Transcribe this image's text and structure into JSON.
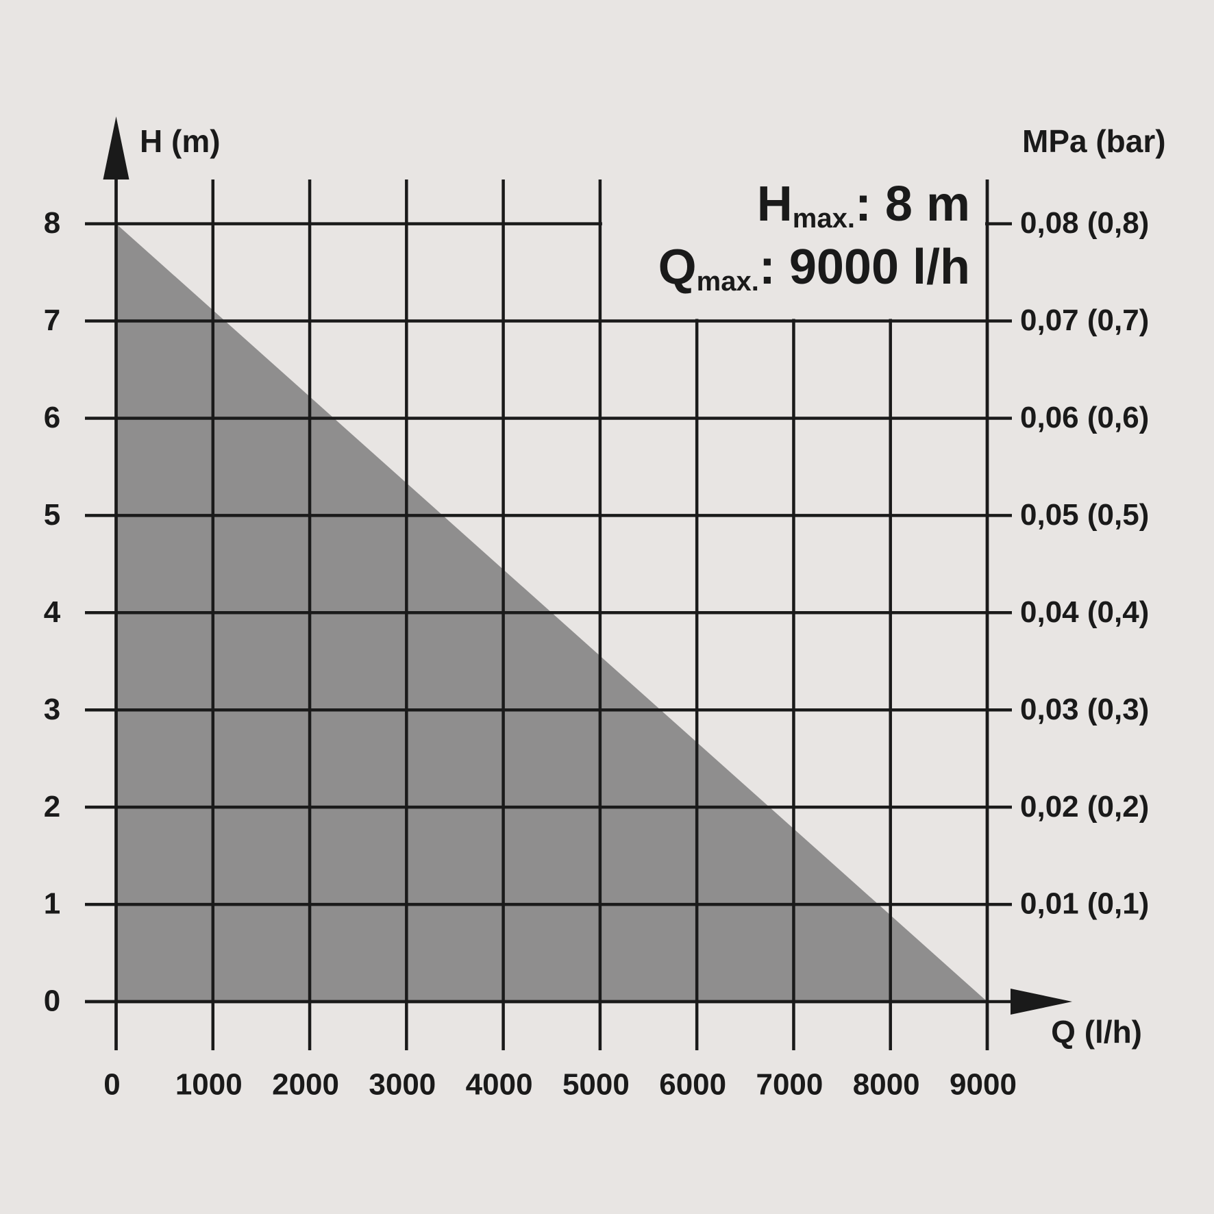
{
  "chart_data": {
    "type": "area",
    "x": [
      0,
      9000
    ],
    "values": [
      8,
      0
    ],
    "color": "#8f8e8e",
    "xlim": [
      0,
      9000
    ],
    "ylim": [
      0,
      8
    ],
    "xticks": [
      0,
      1000,
      2000,
      3000,
      4000,
      5000,
      6000,
      7000,
      8000,
      9000
    ],
    "yticks": [
      0,
      1,
      2,
      3,
      4,
      5,
      6,
      7,
      8
    ],
    "y2lim": [
      0,
      0.08
    ],
    "y2ticks": [
      {
        "value": 0.01,
        "label": "0,01 (0,1)"
      },
      {
        "value": 0.02,
        "label": "0,02 (0,2)"
      },
      {
        "value": 0.03,
        "label": "0,03 (0,3)"
      },
      {
        "value": 0.04,
        "label": "0,04 (0,4)"
      },
      {
        "value": 0.05,
        "label": "0,05 (0,5)"
      },
      {
        "value": 0.06,
        "label": "0,06 (0,6)"
      },
      {
        "value": 0.07,
        "label": "0,07 (0,7)"
      },
      {
        "value": 0.08,
        "label": "0,08 (0,8)"
      }
    ],
    "x_label": "Q (l/h)",
    "y_label": "H (m)",
    "y2_label": "MPa (bar)",
    "annotations": [
      {
        "symbol": "H",
        "subscript": "max.",
        "text": ": 8 m"
      },
      {
        "symbol": "Q",
        "subscript": "max.",
        "text": ": 9000 l/h"
      }
    ],
    "grid": true
  }
}
